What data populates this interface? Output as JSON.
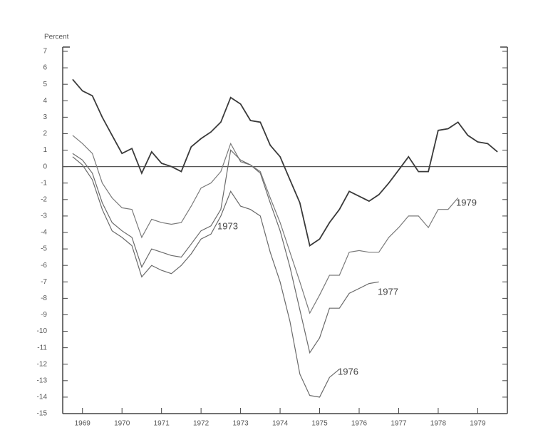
{
  "chart_data": {
    "type": "line",
    "y_label": "Percent",
    "x": [
      1969.25,
      1969.5,
      1969.75,
      1970,
      1970.25,
      1970.5,
      1970.75,
      1971,
      1971.25,
      1971.5,
      1971.75,
      1972,
      1972.25,
      1972.5,
      1972.75,
      1973,
      1973.25,
      1973.5,
      1973.75,
      1974,
      1974.25,
      1974.5,
      1974.75,
      1975,
      1975.25,
      1975.5,
      1975.75,
      1976,
      1976.25,
      1976.5,
      1976.75,
      1977,
      1977.25,
      1977.5,
      1977.75,
      1978,
      1978.25,
      1978.5,
      1978.75,
      1979,
      1979.25,
      1979.5,
      1979.75,
      1980
    ],
    "series": [
      {
        "color": "#3a3a3a",
        "values": [
          5.3,
          4.6,
          4.3,
          3.0,
          1.9,
          0.8,
          1.1,
          -0.4,
          0.9,
          0.2,
          0,
          -0.3,
          1.2,
          1.7,
          2.1,
          2.7,
          4.2,
          3.8,
          2.8,
          2.7,
          1.3,
          0.6,
          -0.8,
          -2.2,
          -4.8,
          -4.4,
          -3.4,
          -2.6,
          -1.5,
          -1.8,
          -2.1,
          -1.7,
          -1.0,
          -0.2,
          0.6,
          -0.3,
          -0.3,
          2.2,
          2.3,
          2.7,
          1.9,
          1.5,
          1.4,
          0.9
        ]
      },
      {
        "color": "#7a7a7a",
        "values": [
          1.9,
          1.4,
          0.8,
          -1.0,
          -1.9,
          -2.5,
          -2.6,
          -4.3,
          -3.2,
          -3.4,
          -3.5,
          -3.4,
          -2.4,
          -1.3,
          -1.0,
          -0.3,
          1.4,
          0.3,
          0.1,
          -0.3,
          -1.9,
          -3.4,
          -5.2,
          -7.0,
          -8.9,
          -7.8,
          -6.6,
          -6.6,
          -5.2,
          -5.1,
          -5.2,
          -5.2,
          -4.3,
          -3.7,
          -3.0,
          -3.0,
          -3.7,
          -2.6,
          -2.6,
          -1.9,
          null,
          null,
          null,
          null
        ]
      },
      {
        "color": "#6a6a6a",
        "values": [
          0.8,
          0.4,
          -0.4,
          -2.2,
          -3.4,
          -3.9,
          -4.3,
          -6.1,
          -5.0,
          -5.2,
          -5.4,
          -5.5,
          -4.7,
          -3.9,
          -3.6,
          -2.6,
          1.0,
          0.4,
          0.1,
          -0.4,
          -2.2,
          -3.9,
          -6.1,
          -8.7,
          -11.3,
          -10.4,
          -8.6,
          -8.6,
          -7.7,
          -7.4,
          -7.1,
          -7.0,
          null,
          null,
          null,
          null,
          null,
          null,
          null,
          null,
          null,
          null,
          null,
          null
        ]
      },
      {
        "color": "#6a6a6a",
        "values": [
          0.6,
          0.1,
          -0.8,
          -2.6,
          -3.9,
          -4.3,
          -4.8,
          -6.7,
          -6.0,
          -6.3,
          -6.5,
          -6.0,
          -5.3,
          -4.4,
          -4.1,
          -3.0,
          -1.5,
          -2.4,
          -2.6,
          -3.0,
          -5.2,
          -7.0,
          -9.4,
          -12.6,
          -13.9,
          -14.0,
          -12.8,
          -12.3,
          null,
          null,
          null,
          null,
          null,
          null,
          null,
          null,
          null,
          null,
          null,
          null,
          null,
          null,
          null,
          null
        ]
      }
    ],
    "annotations": [
      "1973",
      "1979",
      "1977",
      "1976"
    ],
    "xlim": [
      1969,
      1980.25
    ],
    "xticks": [
      {
        "value": 1969.5,
        "label": "1969"
      },
      {
        "value": 1970.5,
        "label": "1970"
      },
      {
        "value": 1971.5,
        "label": "1971"
      },
      {
        "value": 1972.5,
        "label": "1972"
      },
      {
        "value": 1973.5,
        "label": "1973"
      },
      {
        "value": 1974.5,
        "label": "1974"
      },
      {
        "value": 1975.5,
        "label": "1975"
      },
      {
        "value": 1976.5,
        "label": "1976"
      },
      {
        "value": 1977.5,
        "label": "1977"
      },
      {
        "value": 1978.5,
        "label": "1978"
      },
      {
        "value": 1979.5,
        "label": "1979"
      }
    ],
    "ylim": [
      -15,
      7
    ],
    "yticks": [
      -15,
      -14,
      -13,
      -12,
      -11,
      -10,
      -9,
      -8,
      -7,
      -6,
      -5,
      -4,
      -3,
      -2,
      -1,
      0,
      1,
      2,
      3,
      4,
      5,
      6,
      7
    ],
    "zero_line": true
  }
}
